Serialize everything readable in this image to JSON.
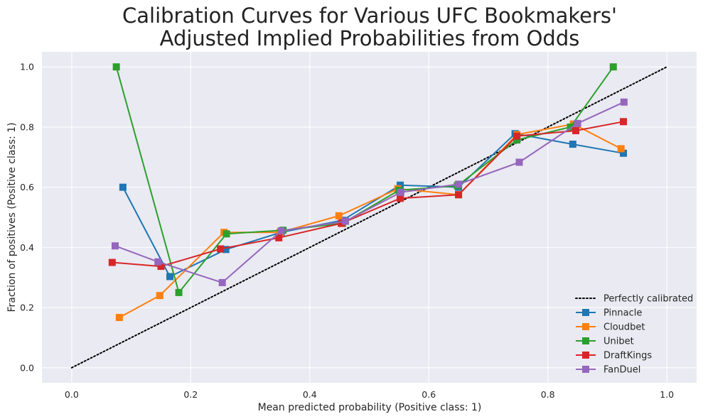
{
  "chart_data": {
    "type": "line",
    "title_lines": [
      "Calibration Curves for Various UFC Bookmakers'",
      "Adjusted Implied Probabilities from Odds"
    ],
    "xlabel": "Mean predicted probability (Positive class: 1)",
    "ylabel": "Fraction of positives (Positive class: 1)",
    "xlim": [
      -0.05,
      1.05
    ],
    "ylim": [
      -0.05,
      1.05
    ],
    "xticks": [
      "0.0",
      "0.2",
      "0.4",
      "0.6",
      "0.8",
      "1.0"
    ],
    "yticks": [
      "0.0",
      "0.2",
      "0.4",
      "0.6",
      "0.8",
      "1.0"
    ],
    "grid": true,
    "background": "#eaeaf2",
    "legend_position": "lower-right",
    "reference": {
      "name": "Perfectly calibrated",
      "x": [
        0,
        1
      ],
      "y": [
        0,
        1
      ],
      "color": "#000000",
      "style": "dotted"
    },
    "series": [
      {
        "name": "Pinnacle",
        "color": "#1f77b4",
        "x": [
          0.086,
          0.165,
          0.259,
          0.352,
          0.455,
          0.552,
          0.65,
          0.745,
          0.842,
          0.927
        ],
        "y": [
          0.6,
          0.303,
          0.393,
          0.45,
          0.49,
          0.607,
          0.6,
          0.778,
          0.743,
          0.713
        ]
      },
      {
        "name": "Cloudbet",
        "color": "#ff7f0e",
        "x": [
          0.08,
          0.148,
          0.256,
          0.35,
          0.449,
          0.548,
          0.65,
          0.748,
          0.843,
          0.923
        ],
        "y": [
          0.167,
          0.24,
          0.45,
          0.45,
          0.505,
          0.595,
          0.575,
          0.775,
          0.81,
          0.728
        ]
      },
      {
        "name": "Unibet",
        "color": "#2ca02c",
        "x": [
          0.075,
          0.18,
          0.26,
          0.355,
          0.455,
          0.55,
          0.648,
          0.748,
          0.838,
          0.91
        ],
        "y": [
          1.0,
          0.25,
          0.445,
          0.457,
          0.48,
          0.59,
          0.605,
          0.757,
          0.8,
          1.0
        ]
      },
      {
        "name": "DraftKings",
        "color": "#d62728",
        "x": [
          0.068,
          0.15,
          0.25,
          0.348,
          0.453,
          0.552,
          0.65,
          0.748,
          0.847,
          0.927
        ],
        "y": [
          0.35,
          0.337,
          0.395,
          0.432,
          0.48,
          0.563,
          0.575,
          0.77,
          0.788,
          0.818
        ]
      },
      {
        "name": "FanDuel",
        "color": "#9467bd",
        "x": [
          0.073,
          0.145,
          0.253,
          0.352,
          0.46,
          0.553,
          0.65,
          0.752,
          0.85,
          0.928
        ],
        "y": [
          0.405,
          0.352,
          0.283,
          0.455,
          0.487,
          0.583,
          0.61,
          0.683,
          0.812,
          0.883
        ]
      }
    ]
  }
}
